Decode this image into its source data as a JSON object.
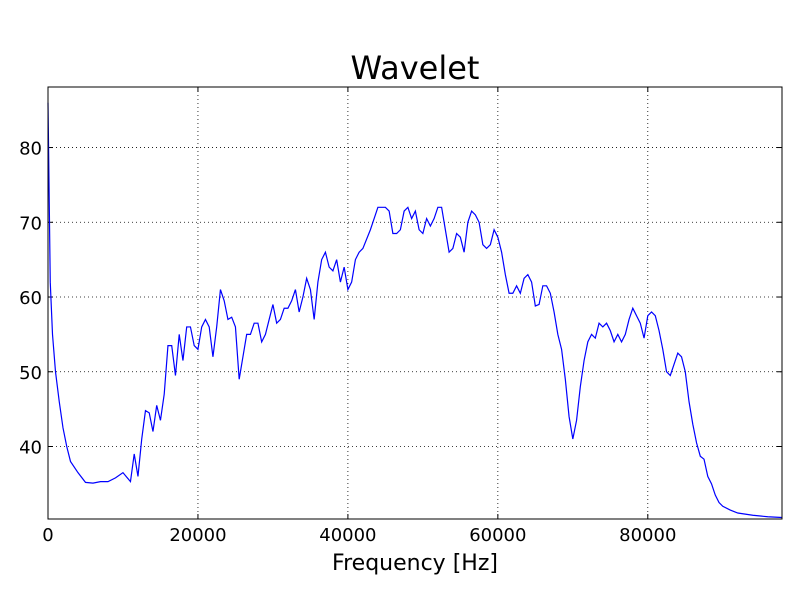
{
  "chart_data": {
    "type": "line",
    "title": "Wavelet",
    "x_label": "Frequency [Hz]",
    "x": [
      0,
      300,
      600,
      1000,
      1500,
      2000,
      2500,
      3000,
      4000,
      5000,
      6000,
      7000,
      8000,
      9000,
      10000,
      11000,
      11500,
      12000,
      12500,
      13000,
      13500,
      14000,
      14500,
      15000,
      15500,
      16000,
      16500,
      17000,
      17500,
      18000,
      18500,
      19000,
      19500,
      20000,
      20500,
      21000,
      21500,
      22000,
      22500,
      23000,
      23500,
      24000,
      24500,
      25000,
      25500,
      26000,
      26500,
      27000,
      27500,
      28000,
      28500,
      29000,
      29500,
      30000,
      30500,
      31000,
      31500,
      32000,
      32500,
      33000,
      33500,
      34000,
      34500,
      35000,
      35500,
      36000,
      36500,
      37000,
      37500,
      38000,
      38500,
      39000,
      39500,
      40000,
      40500,
      41000,
      41500,
      42000,
      43000,
      43500,
      44000,
      44500,
      45000,
      45500,
      46000,
      46500,
      47000,
      47500,
      48000,
      48500,
      49000,
      49500,
      50000,
      50500,
      51000,
      51500,
      52000,
      52500,
      53000,
      53500,
      54000,
      54500,
      55000,
      55500,
      56000,
      56500,
      57000,
      57500,
      58000,
      58500,
      59000,
      59500,
      60000,
      60500,
      61000,
      61500,
      62000,
      62500,
      63000,
      63500,
      64000,
      64500,
      65000,
      65500,
      66000,
      66500,
      67000,
      67500,
      68000,
      68500,
      69000,
      69500,
      70000,
      70500,
      71000,
      71500,
      72000,
      72500,
      73000,
      73500,
      74000,
      74500,
      75000,
      75500,
      76000,
      76500,
      77000,
      77500,
      78000,
      78500,
      79000,
      79500,
      80000,
      80500,
      81000,
      81500,
      82000,
      82500,
      83000,
      83500,
      84000,
      84500,
      85000,
      85500,
      86000,
      86500,
      87000,
      87500,
      88000,
      88500,
      89000,
      89500,
      90000,
      91000,
      92000,
      94000,
      96000,
      97900
    ],
    "series": [
      {
        "name": "Wavelet",
        "color": "#0000ff",
        "values": [
          86,
          62,
          55,
          50,
          46,
          42.5,
          40,
          38,
          36.5,
          35.2,
          35.1,
          35.3,
          35.3,
          35.8,
          36.5,
          35.3,
          39,
          36,
          41,
          44.8,
          44.5,
          42,
          45.5,
          43.5,
          47,
          53.5,
          53.5,
          49.5,
          55,
          51.5,
          56,
          56,
          53.5,
          53,
          56,
          57,
          56,
          52,
          56,
          61,
          59.5,
          57,
          57.3,
          56,
          49,
          52,
          55,
          55,
          56.5,
          56.5,
          54,
          55,
          57,
          59,
          56.5,
          57,
          58.5,
          58.5,
          59.5,
          61,
          58,
          60,
          62.5,
          61,
          57,
          62,
          65,
          66,
          64,
          63.5,
          65,
          62,
          64,
          61,
          62,
          65,
          66,
          66.5,
          69,
          70.5,
          72,
          72,
          72,
          71.5,
          68.5,
          68.5,
          69,
          71.5,
          72,
          70.5,
          71.5,
          69,
          68.5,
          70.5,
          69.5,
          70.5,
          72,
          72,
          69,
          66,
          66.5,
          68.5,
          68,
          66,
          70,
          71.5,
          71,
          70,
          67,
          66.5,
          67,
          69,
          68,
          66,
          63,
          60.5,
          60.5,
          61.5,
          60.5,
          62.5,
          63,
          62,
          58.8,
          59,
          61.5,
          61.5,
          60.5,
          58,
          55,
          53,
          49,
          44,
          41,
          43.5,
          48,
          51.5,
          54,
          55,
          54.5,
          56.5,
          56,
          56.5,
          55.5,
          54,
          55,
          54,
          55,
          57,
          58.5,
          57.5,
          56.5,
          54.5,
          57.5,
          58,
          57.5,
          55.5,
          53,
          50,
          49.5,
          51,
          52.5,
          52,
          50,
          46,
          43,
          40.5,
          38.7,
          38.3,
          36,
          35,
          33.5,
          32.5,
          32,
          31.5,
          31.1,
          30.8,
          30.6,
          30.5
        ]
      }
    ],
    "xlim": [
      0,
      97900
    ],
    "ylim": [
      30.3,
      88.1
    ],
    "xticks": [
      0,
      20000,
      40000,
      60000,
      80000
    ],
    "yticks": [
      40,
      50,
      60,
      70,
      80
    ],
    "grid": true
  }
}
